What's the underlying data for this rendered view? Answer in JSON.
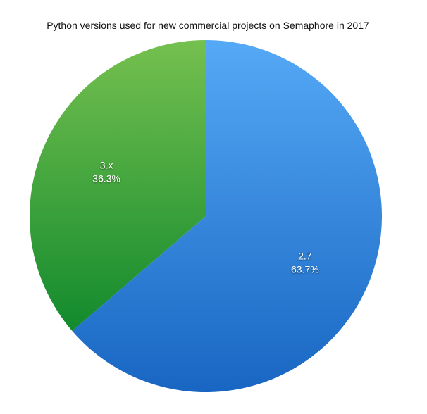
{
  "chart_data": {
    "type": "pie",
    "title": "Python versions used for new commercial projects on Semaphore in 2017",
    "slices": [
      {
        "label": "2.7",
        "value": 63.7,
        "value_label": "63.7%",
        "color_top": "#55a9f6",
        "color_bottom": "#1866c2"
      },
      {
        "label": "3.x",
        "value": 36.3,
        "value_label": "36.3%",
        "color_top": "#75c04f",
        "color_bottom": "#128a2d"
      }
    ],
    "start_angle": "top",
    "direction": "clockwise",
    "legend": "none"
  }
}
